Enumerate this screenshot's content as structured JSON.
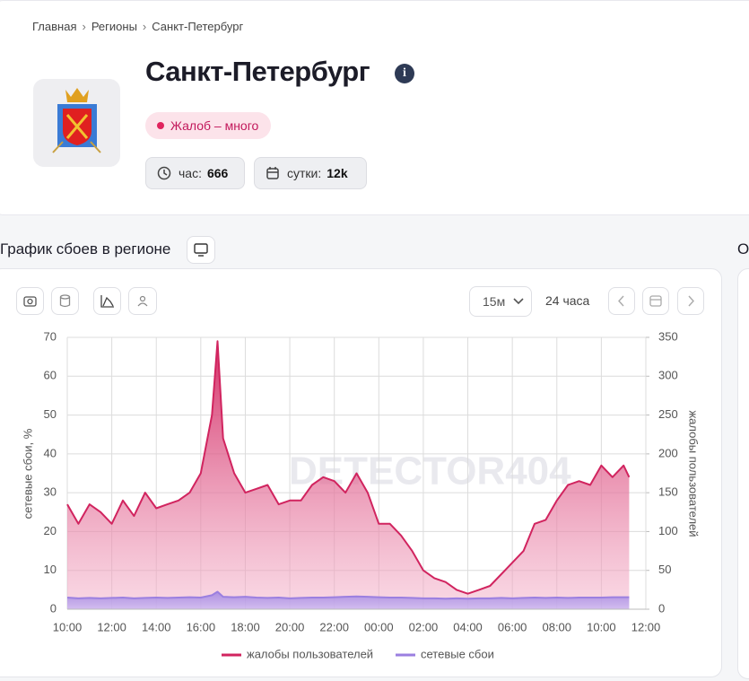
{
  "breadcrumbs": [
    "Главная",
    "Регионы",
    "Санкт-Петербург"
  ],
  "header": {
    "title": "Санкт-Петербург",
    "badge": "Жалоб – много",
    "stats": [
      {
        "label": "час:",
        "value": 666
      },
      {
        "label": "сутки:",
        "value": "12k"
      }
    ]
  },
  "section_title": "График сбоев в регионе",
  "side_section_title": "О",
  "toolbar": {
    "interval": "15м",
    "range": "24 часа"
  },
  "chart_data": {
    "type": "area",
    "watermark": "DETECTOR404",
    "ylabel": "сетевые сбои, %",
    "y2label": "жалобы пользователей",
    "x": [
      10,
      10.5,
      11,
      11.5,
      12,
      12.5,
      13,
      13.5,
      14,
      14.5,
      15,
      15.5,
      16,
      16.5,
      16.75,
      17,
      17.5,
      18,
      18.5,
      19,
      19.5,
      20,
      20.5,
      21,
      21.5,
      22,
      22.5,
      23,
      23.5,
      24,
      24.5,
      25,
      25.5,
      26,
      26.5,
      27,
      27.5,
      28,
      28.5,
      29,
      29.5,
      30,
      30.5,
      31,
      31.5,
      32,
      32.5,
      33,
      33.5,
      34,
      34.5,
      35,
      35.25
    ],
    "xlim": [
      10,
      36
    ],
    "xticks": [
      {
        "value": 10,
        "label": "10:00"
      },
      {
        "value": 12,
        "label": "12:00"
      },
      {
        "value": 14,
        "label": "14:00"
      },
      {
        "value": 16,
        "label": "16:00"
      },
      {
        "value": 18,
        "label": "18:00"
      },
      {
        "value": 20,
        "label": "20:00"
      },
      {
        "value": 22,
        "label": "22:00"
      },
      {
        "value": 24,
        "label": "00:00"
      },
      {
        "value": 26,
        "label": "02:00"
      },
      {
        "value": 28,
        "label": "04:00"
      },
      {
        "value": 30,
        "label": "06:00"
      },
      {
        "value": 32,
        "label": "08:00"
      },
      {
        "value": 34,
        "label": "10:00"
      },
      {
        "value": 36,
        "label": "12:00"
      }
    ],
    "ylim": [
      0,
      70
    ],
    "yticks": [
      0,
      10,
      20,
      30,
      40,
      50,
      60,
      70
    ],
    "y2lim": [
      0,
      350
    ],
    "y2ticks": [
      0,
      50,
      100,
      150,
      200,
      250,
      300,
      350
    ],
    "grid": true,
    "legend": "bottom",
    "series": [
      {
        "name": "жалобы пользователей",
        "color": "#d1245f",
        "axis": "y2",
        "values": [
          135,
          110,
          135,
          125,
          110,
          140,
          120,
          150,
          130,
          135,
          140,
          150,
          175,
          250,
          345,
          220,
          175,
          150,
          155,
          160,
          135,
          140,
          140,
          160,
          170,
          165,
          150,
          175,
          150,
          110,
          110,
          95,
          75,
          50,
          40,
          35,
          25,
          20,
          25,
          30,
          45,
          60,
          75,
          110,
          115,
          140,
          160,
          165,
          160,
          185,
          170,
          185,
          170
        ]
      },
      {
        "name": "сетевые сбои",
        "color": "#9b7fe0",
        "values": [
          3,
          2.8,
          2.9,
          2.8,
          2.9,
          3,
          2.8,
          2.9,
          3,
          2.9,
          3,
          3.1,
          3,
          3.6,
          4.5,
          3.2,
          3.1,
          3.2,
          3,
          2.9,
          3,
          2.8,
          2.9,
          3,
          3,
          3.1,
          3.2,
          3.3,
          3.2,
          3.1,
          3,
          3,
          2.9,
          2.8,
          2.8,
          2.7,
          2.8,
          2.7,
          2.8,
          2.8,
          2.9,
          2.8,
          2.9,
          3,
          2.9,
          3,
          2.9,
          3,
          3,
          3,
          3.1,
          3.1,
          3.1
        ]
      }
    ]
  }
}
